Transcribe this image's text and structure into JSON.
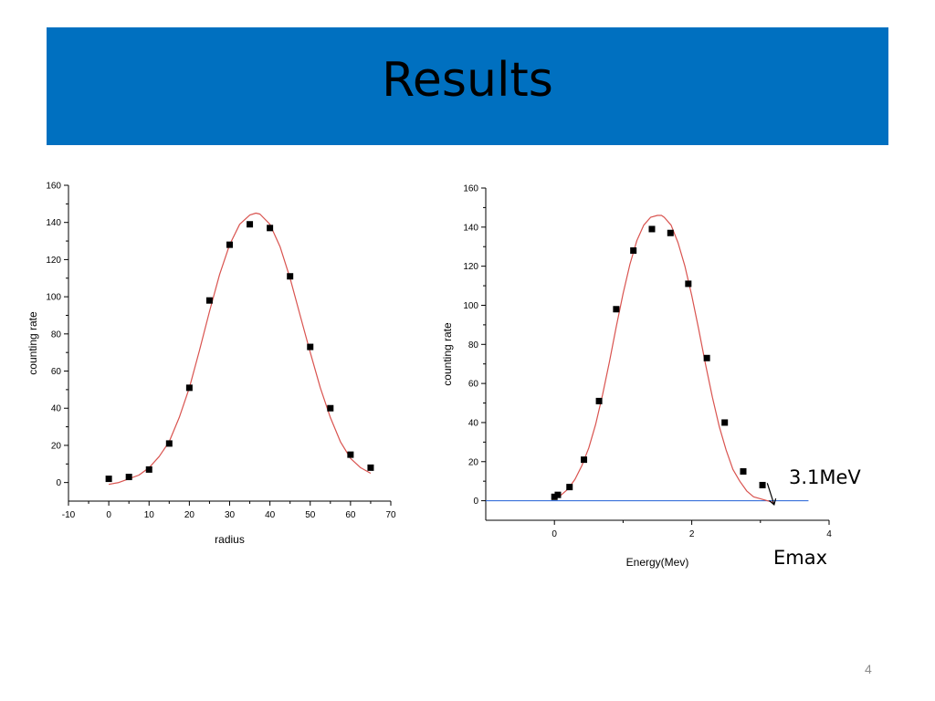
{
  "slide": {
    "title": "Results",
    "page_number": "4",
    "colors": {
      "title_bar": "#0070c0",
      "fit_curve": "#d9534f",
      "points": "#000000",
      "baseline": "#1f5fd6"
    }
  },
  "annotations": {
    "value": "3.1MeV",
    "emax_label": "Emax"
  },
  "chart_data": [
    {
      "type": "scatter",
      "title": "",
      "xlabel": "radius",
      "ylabel": "counting rate",
      "xlim": [
        -10,
        70
      ],
      "ylim": [
        -10,
        160
      ],
      "xticks": [
        -10,
        0,
        10,
        20,
        30,
        40,
        50,
        60,
        70
      ],
      "yticks": [
        0,
        20,
        40,
        60,
        80,
        100,
        120,
        140,
        160
      ],
      "grid": false,
      "series": [
        {
          "kind": "points",
          "x": [
            0,
            5,
            10,
            15,
            20,
            25,
            30,
            35,
            40,
            45,
            50,
            55,
            60,
            65
          ],
          "y": [
            2,
            3,
            7,
            21,
            51,
            98,
            128,
            139,
            137,
            111,
            73,
            40,
            15,
            8
          ]
        },
        {
          "kind": "fit",
          "x": [
            0,
            2.5,
            5,
            7.5,
            10,
            12.5,
            15,
            17.5,
            20,
            22.5,
            25,
            27.5,
            30,
            32.5,
            35,
            36.5,
            37.5,
            40,
            42.5,
            45,
            47.5,
            50,
            52.5,
            55,
            57.5,
            60,
            62.5,
            65
          ],
          "y": [
            -1,
            0,
            2,
            4,
            8,
            14,
            22,
            35,
            51,
            71,
            92,
            112,
            128,
            139,
            144,
            145,
            144.5,
            139,
            127,
            110,
            90,
            70,
            51,
            35,
            22,
            13,
            8,
            5
          ]
        }
      ]
    },
    {
      "type": "scatter",
      "title": "",
      "xlabel": "Energy(Mev)",
      "ylabel": "counting rate",
      "xlim": [
        -1,
        4
      ],
      "ylim": [
        -10,
        160
      ],
      "xticks": [
        0,
        2,
        4
      ],
      "yticks": [
        0,
        20,
        40,
        60,
        80,
        100,
        120,
        140,
        160
      ],
      "grid": false,
      "baseline": {
        "y": 0,
        "x_end": 3.7
      },
      "series": [
        {
          "kind": "points",
          "x": [
            0,
            0.05,
            0.22,
            0.43,
            0.65,
            0.9,
            1.15,
            1.42,
            1.69,
            1.95,
            2.22,
            2.48,
            2.75,
            3.03
          ],
          "y": [
            2,
            3,
            7,
            21,
            51,
            98,
            128,
            139,
            137,
            111,
            73,
            40,
            15,
            8
          ]
        },
        {
          "kind": "fit",
          "x": [
            0,
            0.1,
            0.2,
            0.3,
            0.4,
            0.5,
            0.6,
            0.7,
            0.8,
            0.9,
            1.0,
            1.1,
            1.2,
            1.3,
            1.4,
            1.5,
            1.56,
            1.6,
            1.7,
            1.8,
            1.9,
            2.0,
            2.1,
            2.2,
            2.3,
            2.4,
            2.5,
            2.6,
            2.7,
            2.8,
            2.9,
            3.0,
            3.1,
            3.2
          ],
          "y": [
            1,
            3,
            6,
            11,
            18,
            27,
            39,
            54,
            71,
            89,
            106,
            121,
            133,
            141,
            145,
            146,
            146,
            145,
            141,
            132,
            120,
            105,
            88,
            70,
            53,
            38,
            26,
            16,
            10,
            5,
            2,
            1,
            0,
            -1
          ]
        }
      ],
      "arrow": {
        "from": [
          3.1,
          9
        ],
        "to": [
          3.2,
          -2
        ]
      }
    }
  ]
}
